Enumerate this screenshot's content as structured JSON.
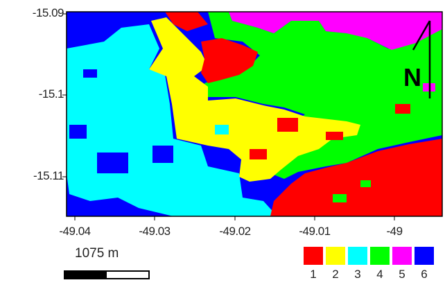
{
  "y_ticks": [
    "-15.09",
    "-15.1",
    "-15.11"
  ],
  "x_ticks": [
    "-49.04",
    "-49.03",
    "-49.02",
    "-49.01",
    "-49"
  ],
  "north_label": "N",
  "scale": {
    "label": "1075 m"
  },
  "legend": [
    {
      "label": "1",
      "color": "#ff0000"
    },
    {
      "label": "2",
      "color": "#ffff00"
    },
    {
      "label": "3",
      "color": "#00ffff"
    },
    {
      "label": "4",
      "color": "#00ff00"
    },
    {
      "label": "5",
      "color": "#ff00ff"
    },
    {
      "label": "6",
      "color": "#0000ff"
    }
  ],
  "colors": {
    "class_1": "#ff0000",
    "class_2": "#ffff00",
    "class_3": "#00ffff",
    "class_4": "#00ff00",
    "class_5": "#ff00ff",
    "class_6": "#0000ff"
  }
}
